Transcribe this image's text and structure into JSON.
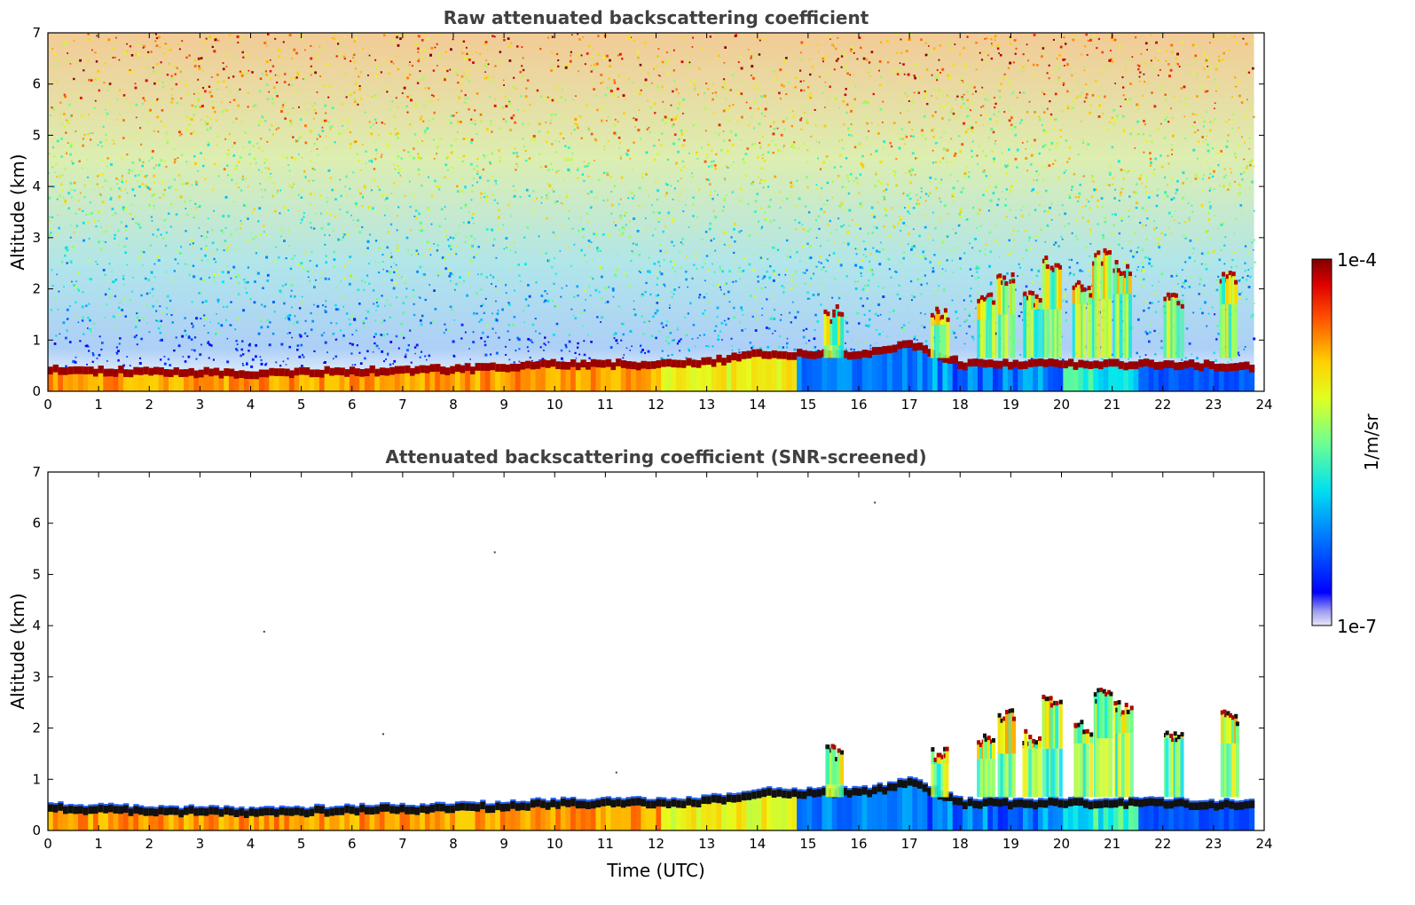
{
  "chart_data": [
    {
      "type": "heatmap",
      "title": "Raw attenuated backscattering coefficient",
      "xlabel": "",
      "ylabel": "Altitude (km)",
      "xlim": [
        0,
        24
      ],
      "ylim": [
        0,
        7
      ],
      "x_ticks": [
        0,
        1,
        2,
        3,
        4,
        5,
        6,
        7,
        8,
        9,
        10,
        11,
        12,
        13,
        14,
        15,
        16,
        17,
        18,
        19,
        20,
        21,
        22,
        23,
        24
      ],
      "y_ticks": [
        0,
        1,
        2,
        3,
        4,
        5,
        6,
        7
      ],
      "data_end_time": 23.8,
      "boundary_layer_top_km": [
        {
          "x": 0,
          "y": 0.5
        },
        {
          "x": 2,
          "y": 0.45
        },
        {
          "x": 4,
          "y": 0.42
        },
        {
          "x": 6,
          "y": 0.47
        },
        {
          "x": 8,
          "y": 0.5
        },
        {
          "x": 10,
          "y": 0.6
        },
        {
          "x": 12,
          "y": 0.6
        },
        {
          "x": 13,
          "y": 0.65
        },
        {
          "x": 14,
          "y": 0.8
        },
        {
          "x": 15,
          "y": 0.8
        },
        {
          "x": 16,
          "y": 0.8
        },
        {
          "x": 17,
          "y": 1.0
        },
        {
          "x": 18,
          "y": 0.6
        },
        {
          "x": 20,
          "y": 0.6
        },
        {
          "x": 21.5,
          "y": 0.6
        },
        {
          "x": 22,
          "y": 0.6
        },
        {
          "x": 23.8,
          "y": 0.55
        }
      ],
      "cloud_events": [
        {
          "x": 15.5,
          "base_km": 0.9,
          "top_km": 1.7
        },
        {
          "x": 17.6,
          "base_km": 1.3,
          "top_km": 1.7
        },
        {
          "x": 18.5,
          "base_km": 1.4,
          "top_km": 2.0
        },
        {
          "x": 18.9,
          "base_km": 1.5,
          "top_km": 2.4
        },
        {
          "x": 19.4,
          "base_km": 1.6,
          "top_km": 2.0
        },
        {
          "x": 19.8,
          "base_km": 1.6,
          "top_km": 2.7
        },
        {
          "x": 20.4,
          "base_km": 1.7,
          "top_km": 2.2
        },
        {
          "x": 20.8,
          "base_km": 1.8,
          "top_km": 2.8
        },
        {
          "x": 21.2,
          "base_km": 1.9,
          "top_km": 2.6
        },
        {
          "x": 22.2,
          "base_km": 1.8,
          "top_km": 2.0
        },
        {
          "x": 23.3,
          "base_km": 1.7,
          "top_km": 2.4
        }
      ],
      "screened": false
    },
    {
      "type": "heatmap",
      "title": "Attenuated backscattering coefficient (SNR-screened)",
      "xlabel": "Time (UTC)",
      "ylabel": "Altitude (km)",
      "xlim": [
        0,
        24
      ],
      "ylim": [
        0,
        7
      ],
      "x_ticks": [
        0,
        1,
        2,
        3,
        4,
        5,
        6,
        7,
        8,
        9,
        10,
        11,
        12,
        13,
        14,
        15,
        16,
        17,
        18,
        19,
        20,
        21,
        22,
        23,
        24
      ],
      "y_ticks": [
        0,
        1,
        2,
        3,
        4,
        5,
        6,
        7
      ],
      "data_end_time": 23.8,
      "screened": true
    }
  ],
  "colorbar": {
    "max_label": "1e-4",
    "min_label": "1e-7",
    "unit_label": "1/m/sr",
    "scale": "log",
    "colormap": "jet"
  }
}
